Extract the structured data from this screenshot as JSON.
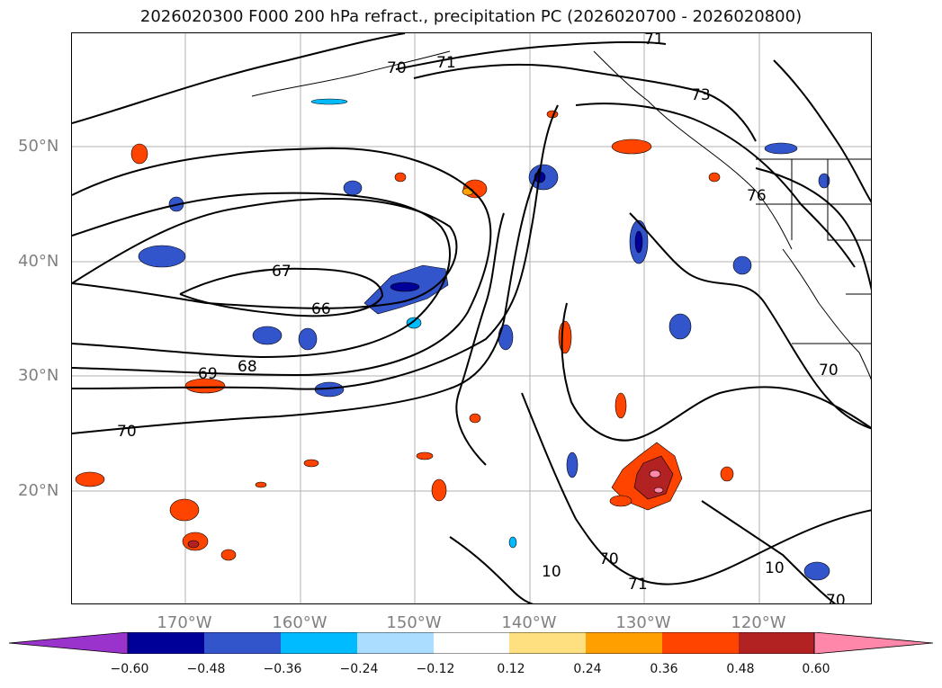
{
  "title": "2026020300 F000 200 hPa refract., precipitation PC (2026020700 - 2026020800)",
  "map": {
    "lat_ticks": [
      "50°N",
      "40°N",
      "30°N",
      "20°N"
    ],
    "lon_ticks": [
      "170°W",
      "160°W",
      "150°W",
      "140°W",
      "130°W",
      "120°W"
    ],
    "contour_labels": [
      "71",
      "70",
      "71",
      "73",
      "76",
      "67",
      "66",
      "68",
      "69",
      "70",
      "70",
      "10",
      "71",
      "70",
      "10",
      "70"
    ],
    "grid": true,
    "contour_color": "#000000"
  },
  "colorbar": {
    "ticks": [
      "−0.60",
      "−0.48",
      "−0.36",
      "−0.24",
      "−0.12",
      "0.12",
      "0.24",
      "0.36",
      "0.48",
      "0.60"
    ],
    "colors": [
      "#9933cc",
      "#000099",
      "#3355cc",
      "#00bbff",
      "#aaddff",
      "#ffffff",
      "#ffe080",
      "#ffa000",
      "#ff4400",
      "#b22222",
      "#ff88aa"
    ]
  }
}
